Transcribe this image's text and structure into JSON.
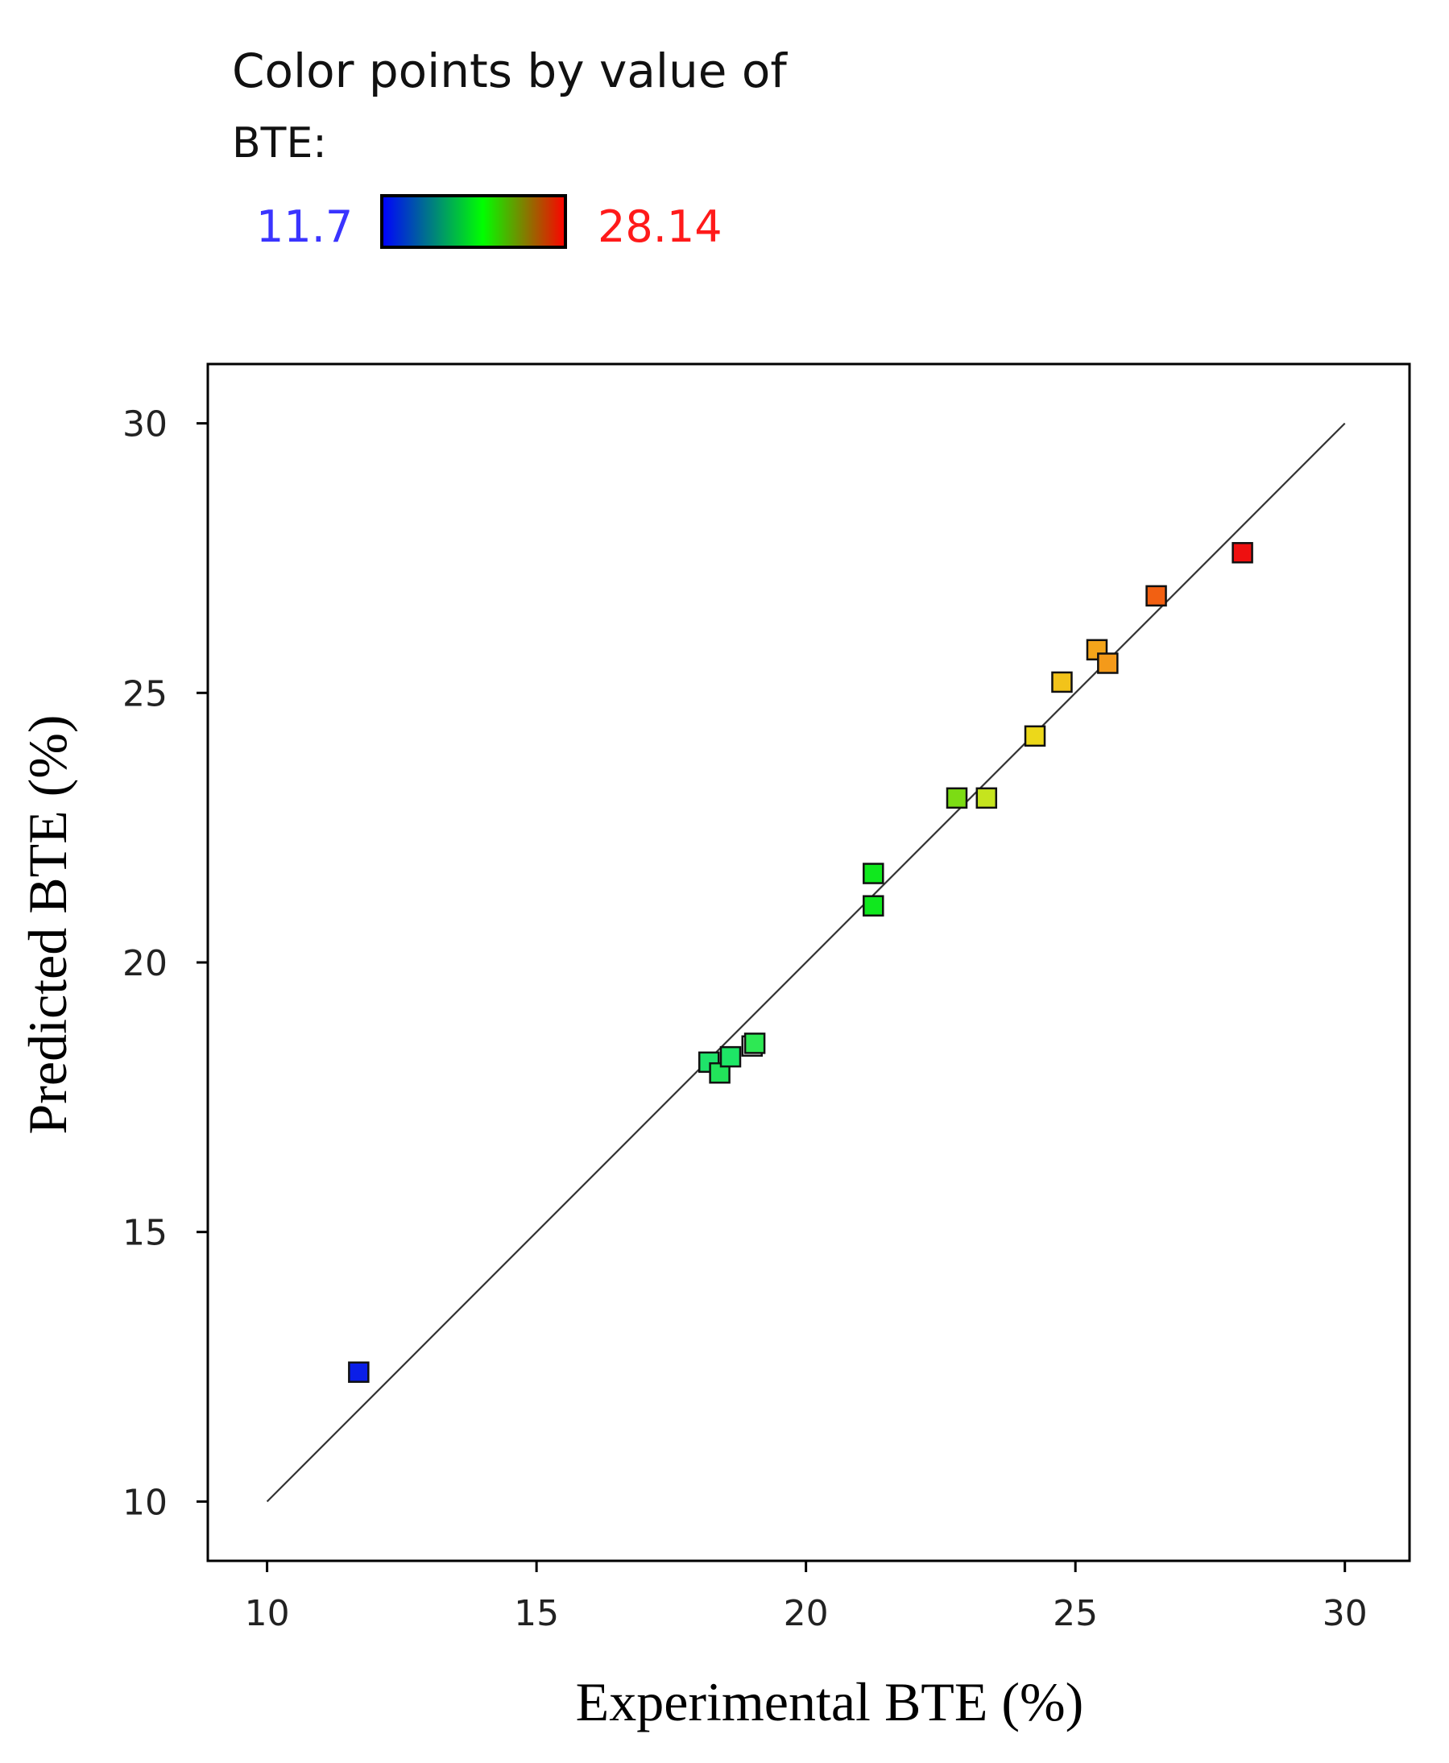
{
  "legend": {
    "title_line1": "Color points by value of",
    "title_line2": "BTE:",
    "min_label": "11.7",
    "max_label": "28.14",
    "min_color": "#0000ff",
    "max_color": "#ff0000",
    "gradient_stops": [
      "#0000ff",
      "#00ff00",
      "#ff0000"
    ]
  },
  "chart_data": {
    "type": "scatter",
    "title": "",
    "xlabel": "Experimental BTE (%)",
    "ylabel": "Predicted BTE (%)",
    "xlim": [
      8.9,
      31.2
    ],
    "ylim": [
      8.9,
      31.1
    ],
    "xticks": [
      10,
      15,
      20,
      25,
      30
    ],
    "yticks": [
      10,
      15,
      20,
      25,
      30
    ],
    "grid": false,
    "reference_line": {
      "from": [
        10,
        10
      ],
      "to": [
        30,
        30
      ],
      "color": "#333333"
    },
    "points": [
      {
        "x": 11.7,
        "y": 12.4,
        "color": "#0a1ee8"
      },
      {
        "x": 18.2,
        "y": 18.15,
        "color": "#1fe36a"
      },
      {
        "x": 18.4,
        "y": 17.95,
        "color": "#22e35a"
      },
      {
        "x": 18.6,
        "y": 18.25,
        "color": "#1ee666"
      },
      {
        "x": 19.0,
        "y": 18.45,
        "color": "#ffffff"
      },
      {
        "x": 19.05,
        "y": 18.5,
        "color": "#2ee854"
      },
      {
        "x": 21.25,
        "y": 21.65,
        "color": "#10e81e"
      },
      {
        "x": 21.25,
        "y": 21.05,
        "color": "#10e81e"
      },
      {
        "x": 22.8,
        "y": 23.05,
        "color": "#7cdc14"
      },
      {
        "x": 23.35,
        "y": 23.05,
        "color": "#c5e41e"
      },
      {
        "x": 24.25,
        "y": 24.2,
        "color": "#ecd81a"
      },
      {
        "x": 24.75,
        "y": 25.2,
        "color": "#f2c31a"
      },
      {
        "x": 25.4,
        "y": 25.8,
        "color": "#f4a51a"
      },
      {
        "x": 25.6,
        "y": 25.55,
        "color": "#f49a1a"
      },
      {
        "x": 26.5,
        "y": 26.8,
        "color": "#f26012"
      },
      {
        "x": 28.1,
        "y": 27.6,
        "color": "#ee1010"
      }
    ]
  }
}
